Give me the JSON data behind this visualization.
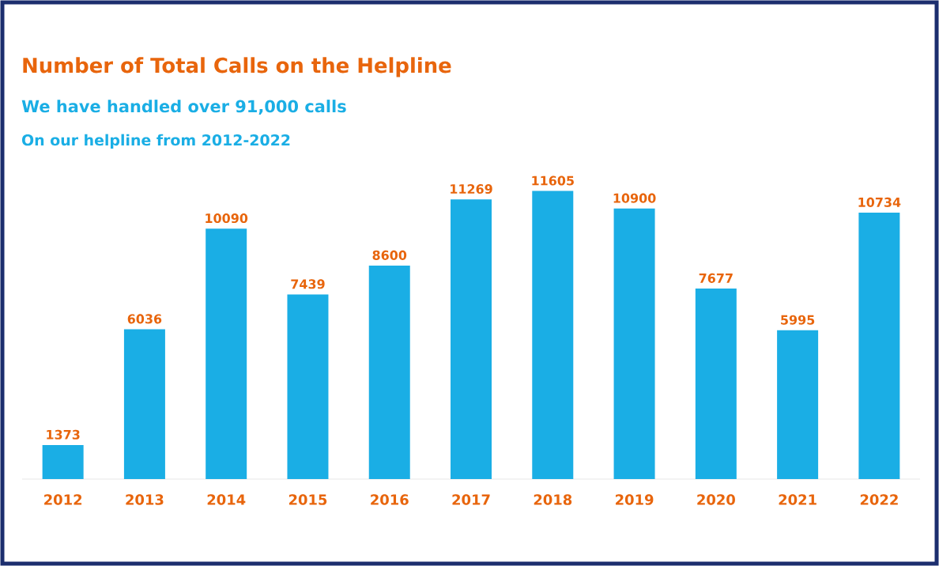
{
  "chart_data": {
    "type": "bar",
    "title": "Number of Total Calls on the Helpline",
    "subtitle": "We have handled **over 91,000 calls**",
    "annotations": [
      "On our helpline from 2012-2022"
    ],
    "categories": [
      "2012",
      "2013",
      "2014",
      "2015",
      "2016",
      "2017",
      "2018",
      "2019",
      "2020",
      "2021",
      "2022"
    ],
    "values": [
      1373,
      6036,
      10090,
      7439,
      8600,
      11269,
      11605,
      10900,
      7677,
      5995,
      10734
    ],
    "color": "#1aaee5",
    "data_labels": true
  }
}
